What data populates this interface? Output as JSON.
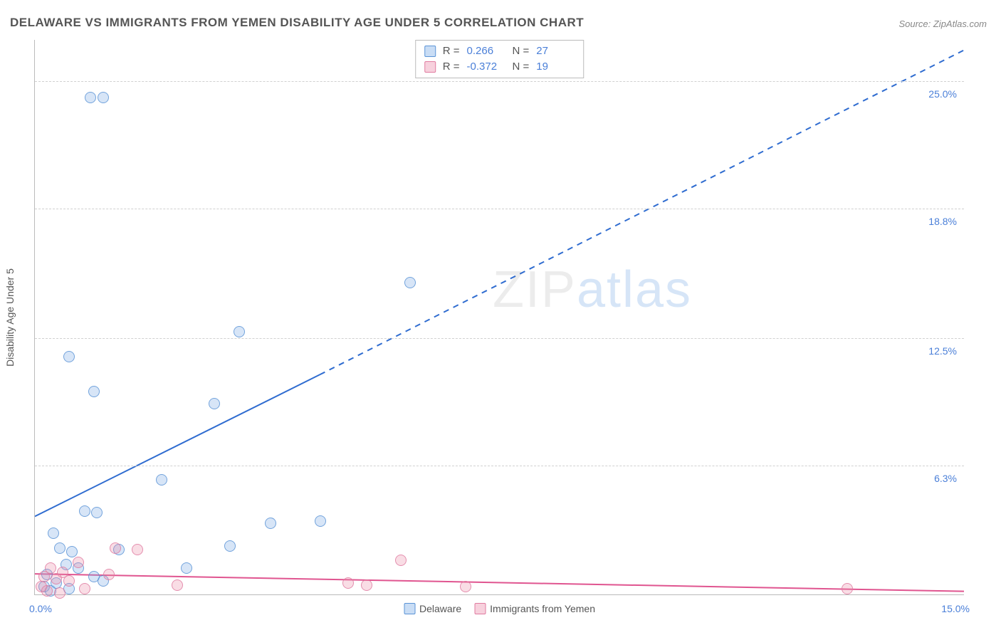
{
  "title": "DELAWARE VS IMMIGRANTS FROM YEMEN DISABILITY AGE UNDER 5 CORRELATION CHART",
  "source": "Source: ZipAtlas.com",
  "ylabel": "Disability Age Under 5",
  "watermark": {
    "left": "ZIP",
    "right": "atlas"
  },
  "chart": {
    "type": "scatter",
    "xlim": [
      0,
      15
    ],
    "ylim": [
      0,
      27
    ],
    "xticks": [
      {
        "value": 0.0,
        "label": "0.0%"
      },
      {
        "value": 15.0,
        "label": "15.0%"
      }
    ],
    "yticks": [
      {
        "value": 6.3,
        "label": "6.3%"
      },
      {
        "value": 12.5,
        "label": "12.5%"
      },
      {
        "value": 18.8,
        "label": "18.8%"
      },
      {
        "value": 25.0,
        "label": "25.0%"
      }
    ],
    "gridlines_y": [
      6.3,
      12.5,
      18.8,
      25.0
    ],
    "background_color": "#ffffff",
    "grid_color": "#d0d0d0",
    "axis_label_color": "#4a7fd8",
    "marker_size": 16,
    "series": [
      {
        "name": "Delaware",
        "color_fill": "rgba(120,170,230,0.35)",
        "color_stroke": "#5a93d6",
        "css_class": "blue",
        "stats": {
          "R": "0.266",
          "N": "27"
        },
        "trend": {
          "solid": {
            "x1": 0.0,
            "y1": 3.8,
            "x2": 4.6,
            "y2": 10.7
          },
          "dashed": {
            "x1": 4.6,
            "y1": 10.7,
            "x2": 15.0,
            "y2": 26.5
          },
          "color": "#2f6cd0",
          "width": 2
        },
        "points": [
          {
            "x": 0.9,
            "y": 24.2
          },
          {
            "x": 1.1,
            "y": 24.2
          },
          {
            "x": 6.05,
            "y": 15.2
          },
          {
            "x": 3.3,
            "y": 12.8
          },
          {
            "x": 0.55,
            "y": 11.6
          },
          {
            "x": 0.95,
            "y": 9.9
          },
          {
            "x": 2.9,
            "y": 9.3
          },
          {
            "x": 2.05,
            "y": 5.6
          },
          {
            "x": 0.8,
            "y": 4.1
          },
          {
            "x": 1.0,
            "y": 4.0
          },
          {
            "x": 0.3,
            "y": 3.0
          },
          {
            "x": 3.8,
            "y": 3.5
          },
          {
            "x": 4.6,
            "y": 3.6
          },
          {
            "x": 0.4,
            "y": 2.3
          },
          {
            "x": 0.6,
            "y": 2.1
          },
          {
            "x": 3.15,
            "y": 2.4
          },
          {
            "x": 1.35,
            "y": 2.2
          },
          {
            "x": 0.5,
            "y": 1.5
          },
          {
            "x": 0.7,
            "y": 1.3
          },
          {
            "x": 2.45,
            "y": 1.3
          },
          {
            "x": 0.2,
            "y": 1.0
          },
          {
            "x": 0.95,
            "y": 0.9
          },
          {
            "x": 1.1,
            "y": 0.7
          },
          {
            "x": 0.35,
            "y": 0.6
          },
          {
            "x": 0.15,
            "y": 0.4
          },
          {
            "x": 0.55,
            "y": 0.3
          },
          {
            "x": 0.25,
            "y": 0.2
          }
        ]
      },
      {
        "name": "Immigrants from Yemen",
        "color_fill": "rgba(235,140,170,0.35)",
        "color_stroke": "#e07ba0",
        "css_class": "pink",
        "stats": {
          "R": "-0.372",
          "N": "19"
        },
        "trend": {
          "solid": {
            "x1": 0.0,
            "y1": 1.0,
            "x2": 15.0,
            "y2": 0.15
          },
          "dashed": null,
          "color": "#e05590",
          "width": 2
        },
        "points": [
          {
            "x": 1.3,
            "y": 2.3
          },
          {
            "x": 1.65,
            "y": 2.2
          },
          {
            "x": 5.9,
            "y": 1.7
          },
          {
            "x": 0.7,
            "y": 1.6
          },
          {
            "x": 0.25,
            "y": 1.3
          },
          {
            "x": 0.45,
            "y": 1.1
          },
          {
            "x": 1.2,
            "y": 1.0
          },
          {
            "x": 0.15,
            "y": 0.9
          },
          {
            "x": 0.35,
            "y": 0.8
          },
          {
            "x": 0.55,
            "y": 0.7
          },
          {
            "x": 5.05,
            "y": 0.6
          },
          {
            "x": 5.35,
            "y": 0.5
          },
          {
            "x": 2.3,
            "y": 0.5
          },
          {
            "x": 6.95,
            "y": 0.4
          },
          {
            "x": 0.1,
            "y": 0.4
          },
          {
            "x": 0.8,
            "y": 0.3
          },
          {
            "x": 13.1,
            "y": 0.3
          },
          {
            "x": 0.2,
            "y": 0.2
          },
          {
            "x": 0.4,
            "y": 0.1
          }
        ]
      }
    ],
    "stats_box_labels": {
      "R": "R =",
      "N": "N ="
    },
    "legend": [
      {
        "label": "Delaware",
        "css_class": "blue"
      },
      {
        "label": "Immigrants from Yemen",
        "css_class": "pink"
      }
    ]
  }
}
